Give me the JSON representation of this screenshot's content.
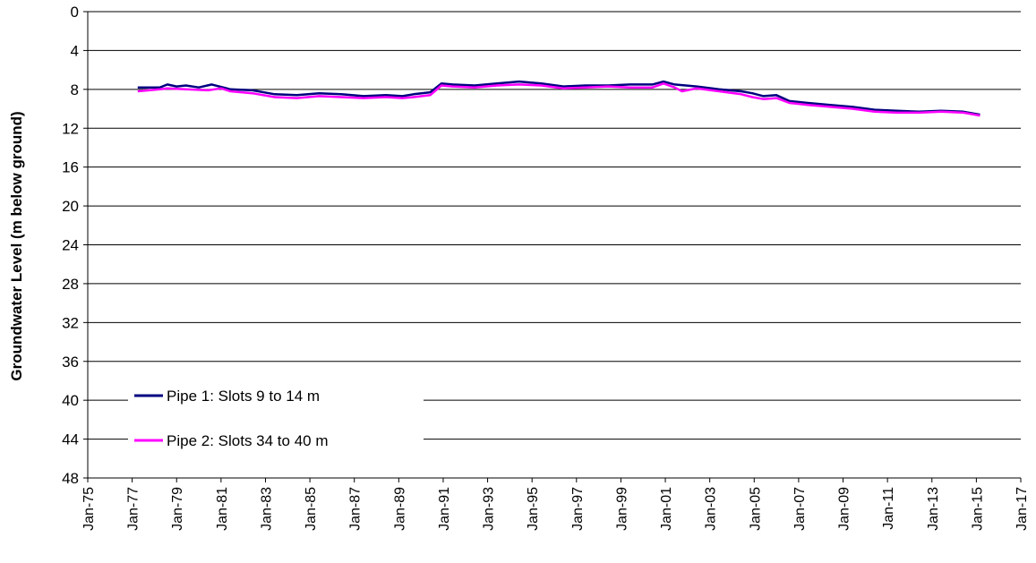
{
  "chart_data": {
    "type": "line",
    "title": "",
    "xlabel": "",
    "ylabel": "Groundwater Level (m below ground)",
    "ylim": [
      0,
      48
    ],
    "y_inverted": true,
    "y_ticks": [
      "0",
      "4",
      "8",
      "12",
      "16",
      "20",
      "24",
      "28",
      "32",
      "36",
      "40",
      "44",
      "48"
    ],
    "x_range": [
      "1975-01",
      "2017-01"
    ],
    "x_ticks": [
      "Jan-75",
      "Jan-77",
      "Jan-79",
      "Jan-81",
      "Jan-83",
      "Jan-85",
      "Jan-87",
      "Jan-89",
      "Jan-91",
      "Jan-93",
      "Jan-95",
      "Jan-97",
      "Jan-99",
      "Jan-01",
      "Jan-03",
      "Jan-05",
      "Jan-07",
      "Jan-09",
      "Jan-11",
      "Jan-13",
      "Jan-15",
      "Jan-17"
    ],
    "grid": "horizontal",
    "legend_position": "lower-left",
    "series": [
      {
        "name": "Pipe 1: Slots 9 to 14 m",
        "color": "#000080",
        "points": [
          [
            "1977-04",
            7.8
          ],
          [
            "1978-04",
            7.8
          ],
          [
            "1978-08",
            7.5
          ],
          [
            "1979-01",
            7.7
          ],
          [
            "1979-06",
            7.6
          ],
          [
            "1980-01",
            7.8
          ],
          [
            "1980-08",
            7.5
          ],
          [
            "1981-06",
            8.0
          ],
          [
            "1982-06",
            8.1
          ],
          [
            "1983-06",
            8.5
          ],
          [
            "1984-06",
            8.6
          ],
          [
            "1985-06",
            8.4
          ],
          [
            "1986-06",
            8.5
          ],
          [
            "1987-06",
            8.7
          ],
          [
            "1988-06",
            8.6
          ],
          [
            "1989-03",
            8.7
          ],
          [
            "1989-09",
            8.5
          ],
          [
            "1990-06",
            8.3
          ],
          [
            "1990-12",
            7.4
          ],
          [
            "1991-06",
            7.5
          ],
          [
            "1992-06",
            7.6
          ],
          [
            "1993-06",
            7.4
          ],
          [
            "1994-06",
            7.2
          ],
          [
            "1995-06",
            7.4
          ],
          [
            "1996-06",
            7.7
          ],
          [
            "1997-06",
            7.6
          ],
          [
            "1998-06",
            7.6
          ],
          [
            "1999-06",
            7.5
          ],
          [
            "2000-06",
            7.5
          ],
          [
            "2000-12",
            7.2
          ],
          [
            "2001-06",
            7.5
          ],
          [
            "2002-06",
            7.7
          ],
          [
            "2003-06",
            8.0
          ],
          [
            "2004-06",
            8.2
          ],
          [
            "2004-12",
            8.4
          ],
          [
            "2005-06",
            8.7
          ],
          [
            "2006-01",
            8.6
          ],
          [
            "2006-08",
            9.2
          ],
          [
            "2007-06",
            9.4
          ],
          [
            "2008-06",
            9.6
          ],
          [
            "2009-06",
            9.8
          ],
          [
            "2010-06",
            10.1
          ],
          [
            "2011-06",
            10.2
          ],
          [
            "2012-06",
            10.3
          ],
          [
            "2013-06",
            10.2
          ],
          [
            "2014-06",
            10.3
          ],
          [
            "2015-03",
            10.6
          ]
        ]
      },
      {
        "name": "Pipe 2: Slots 34 to 40 m",
        "color": "#ff00ff",
        "points": [
          [
            "1977-04",
            8.2
          ],
          [
            "1978-04",
            8.0
          ],
          [
            "1978-08",
            7.9
          ],
          [
            "1979-06",
            8.0
          ],
          [
            "1980-06",
            8.1
          ],
          [
            "1981-01",
            7.9
          ],
          [
            "1981-06",
            8.2
          ],
          [
            "1982-06",
            8.4
          ],
          [
            "1983-06",
            8.8
          ],
          [
            "1984-06",
            8.9
          ],
          [
            "1985-06",
            8.7
          ],
          [
            "1986-06",
            8.8
          ],
          [
            "1987-06",
            8.9
          ],
          [
            "1988-06",
            8.8
          ],
          [
            "1989-03",
            8.9
          ],
          [
            "1989-09",
            8.8
          ],
          [
            "1990-06",
            8.6
          ],
          [
            "1990-12",
            7.6
          ],
          [
            "1991-06",
            7.7
          ],
          [
            "1992-06",
            7.8
          ],
          [
            "1993-06",
            7.6
          ],
          [
            "1994-06",
            7.5
          ],
          [
            "1995-06",
            7.6
          ],
          [
            "1996-06",
            7.9
          ],
          [
            "1997-06",
            7.8
          ],
          [
            "1998-06",
            7.7
          ],
          [
            "1999-06",
            7.8
          ],
          [
            "2000-06",
            7.8
          ],
          [
            "2000-12",
            7.4
          ],
          [
            "2001-06",
            7.8
          ],
          [
            "2001-10",
            8.2
          ],
          [
            "2002-06",
            7.9
          ],
          [
            "2003-06",
            8.2
          ],
          [
            "2004-06",
            8.5
          ],
          [
            "2004-12",
            8.8
          ],
          [
            "2005-06",
            9.0
          ],
          [
            "2006-01",
            8.9
          ],
          [
            "2006-08",
            9.4
          ],
          [
            "2007-06",
            9.6
          ],
          [
            "2008-06",
            9.8
          ],
          [
            "2009-06",
            10.0
          ],
          [
            "2010-06",
            10.3
          ],
          [
            "2011-06",
            10.4
          ],
          [
            "2012-06",
            10.4
          ],
          [
            "2013-06",
            10.3
          ],
          [
            "2014-06",
            10.4
          ],
          [
            "2015-03",
            10.7
          ]
        ]
      }
    ]
  }
}
